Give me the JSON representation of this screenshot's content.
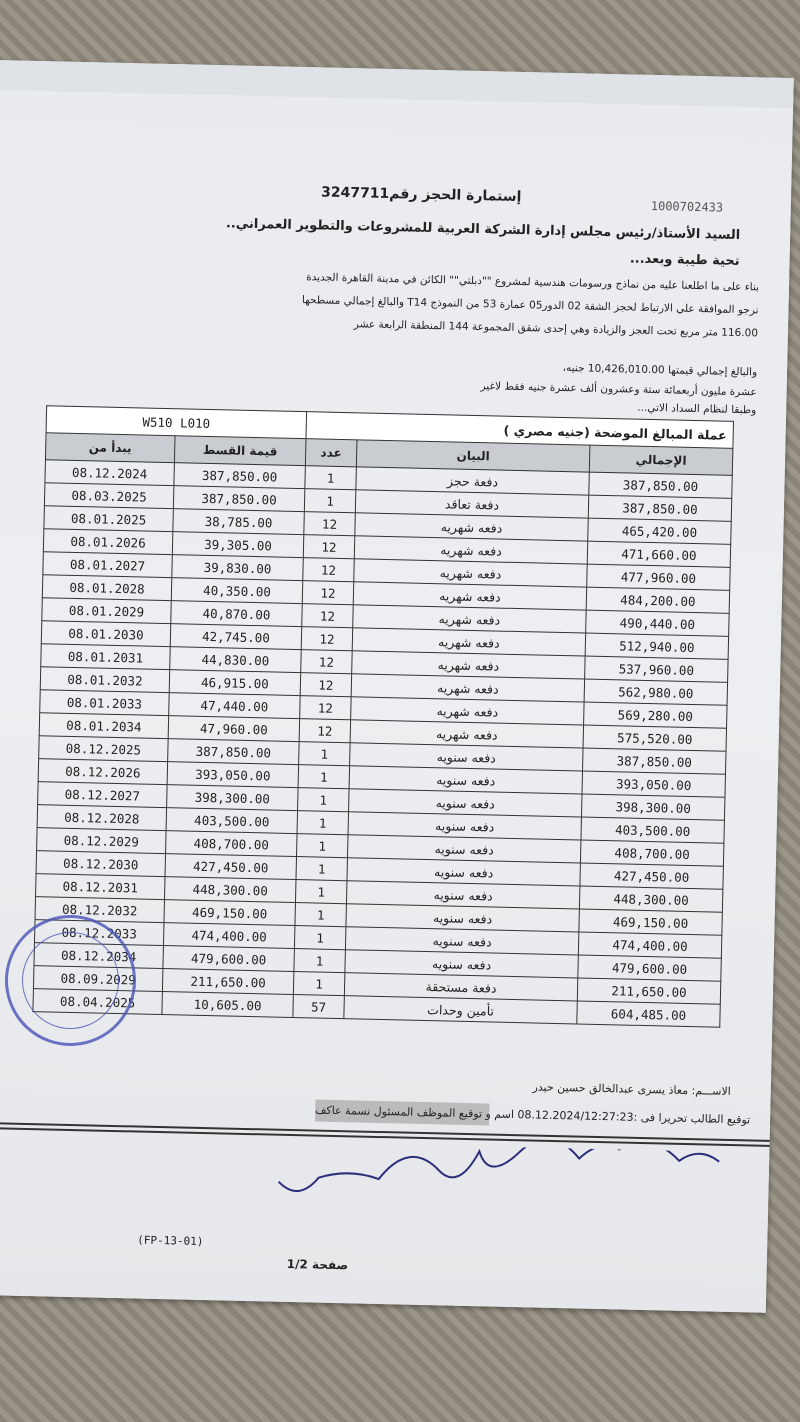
{
  "header": {
    "reference": "1000702433",
    "title": "إستمارة الحجز رقم3247711",
    "addressee": "السيد الأستاذ/رئيس مجلس إدارة الشركة العربية للمشروعات والتطوير العمراني..",
    "greeting": "تحية طيبة وبعد...",
    "body_lines": [
      "بناء على ما اطلعنا عليه من نماذج ورسومات هندسية لمشروع \"\"دبلتي\"\" الكائن في مدينة القاهرة الجديدة",
      "نرجو الموافقة علي الارتباط لحجز الشقة 02 الدور05 عمارة 53 من النموذج T14 والبالغ إجمالي مسطحها",
      "116.00 متر مربع تحت العجز والزيادة وهي إحدى شقق المجموعة 144 المنطقة الرابعة عشر",
      "والبالغ إجمالي قيمتها 10,426,010.00 جنيه،",
      "عشرة مليون أربعمائة ستة وعشرون ألف عشرة جنيه فقط لاغير",
      "وطبقا لنظام السداد الاتي..."
    ]
  },
  "table": {
    "caption": "عملة المبالغ الموضحة (جنيه مصري )",
    "codes": "W510    L010",
    "columns": [
      "الإجمالي",
      "البيان",
      "عدد",
      "قيمة القسط",
      "يبدأ من"
    ],
    "rows": [
      [
        "387,850.00",
        "دفعة حجز",
        "1",
        "387,850.00",
        "08.12.2024"
      ],
      [
        "387,850.00",
        "دفعة تعاقد",
        "1",
        "387,850.00",
        "08.03.2025"
      ],
      [
        "465,420.00",
        "دفعه شهريه",
        "12",
        "38,785.00",
        "08.01.2025"
      ],
      [
        "471,660.00",
        "دفعه شهريه",
        "12",
        "39,305.00",
        "08.01.2026"
      ],
      [
        "477,960.00",
        "دفعه شهريه",
        "12",
        "39,830.00",
        "08.01.2027"
      ],
      [
        "484,200.00",
        "دفعه شهريه",
        "12",
        "40,350.00",
        "08.01.2028"
      ],
      [
        "490,440.00",
        "دفعه شهريه",
        "12",
        "40,870.00",
        "08.01.2029"
      ],
      [
        "512,940.00",
        "دفعه شهريه",
        "12",
        "42,745.00",
        "08.01.2030"
      ],
      [
        "537,960.00",
        "دفعه شهريه",
        "12",
        "44,830.00",
        "08.01.2031"
      ],
      [
        "562,980.00",
        "دفعه شهريه",
        "12",
        "46,915.00",
        "08.01.2032"
      ],
      [
        "569,280.00",
        "دفعه شهريه",
        "12",
        "47,440.00",
        "08.01.2033"
      ],
      [
        "575,520.00",
        "دفعه شهريه",
        "12",
        "47,960.00",
        "08.01.2034"
      ],
      [
        "387,850.00",
        "دفعه سنويه",
        "1",
        "387,850.00",
        "08.12.2025"
      ],
      [
        "393,050.00",
        "دفعه سنويه",
        "1",
        "393,050.00",
        "08.12.2026"
      ],
      [
        "398,300.00",
        "دفعه سنويه",
        "1",
        "398,300.00",
        "08.12.2027"
      ],
      [
        "403,500.00",
        "دفعه سنويه",
        "1",
        "403,500.00",
        "08.12.2028"
      ],
      [
        "408,700.00",
        "دفعه سنويه",
        "1",
        "408,700.00",
        "08.12.2029"
      ],
      [
        "427,450.00",
        "دفعه سنويه",
        "1",
        "427,450.00",
        "08.12.2030"
      ],
      [
        "448,300.00",
        "دفعه سنويه",
        "1",
        "448,300.00",
        "08.12.2031"
      ],
      [
        "469,150.00",
        "دفعه سنويه",
        "1",
        "469,150.00",
        "08.12.2032"
      ],
      [
        "474,400.00",
        "دفعه سنويه",
        "1",
        "474,400.00",
        "08.12.2033"
      ],
      [
        "479,600.00",
        "دفعه سنويه",
        "1",
        "479,600.00",
        "08.12.2034"
      ],
      [
        "211,650.00",
        "دفعة مستحقة",
        "1",
        "211,650.00",
        "08.09.2029"
      ],
      [
        "604,485.00",
        "تأمين وحدات",
        "57",
        "10,605.00",
        "08.04.2025"
      ]
    ]
  },
  "footer": {
    "name": "الاســـم: معاذ يسرى عبدالخالق حسين حيدر",
    "signature_line": "توقيع الطالب   تحريرا فى :08.12.2024/12:27:23 اسم و توقيع الموظف المسئول نسمة عاكف",
    "handwritten_signature": "معاذ يسرى عبدالخالق حسين",
    "form_code": "(FP-13-01)",
    "page": "صفحة 1/2",
    "stamp_text": "الشركة العربية للمشروعات والتطوير العمراني"
  }
}
